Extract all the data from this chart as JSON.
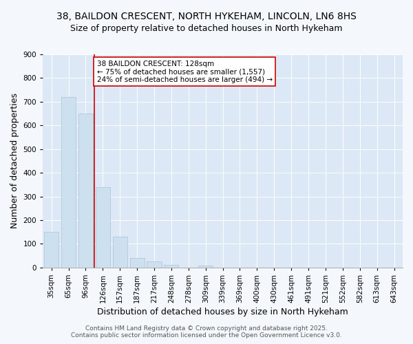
{
  "title_line1": "38, BAILDON CRESCENT, NORTH HYKEHAM, LINCOLN, LN6 8HS",
  "title_line2": "Size of property relative to detached houses in North Hykeham",
  "xlabel": "Distribution of detached houses by size in North Hykeham",
  "ylabel": "Number of detached properties",
  "categories": [
    "35sqm",
    "65sqm",
    "96sqm",
    "126sqm",
    "157sqm",
    "187sqm",
    "217sqm",
    "248sqm",
    "278sqm",
    "309sqm",
    "339sqm",
    "369sqm",
    "400sqm",
    "430sqm",
    "461sqm",
    "491sqm",
    "521sqm",
    "552sqm",
    "582sqm",
    "613sqm",
    "643sqm"
  ],
  "values": [
    150,
    720,
    650,
    340,
    130,
    40,
    25,
    10,
    0,
    8,
    0,
    0,
    0,
    0,
    0,
    0,
    0,
    0,
    0,
    0,
    0
  ],
  "bar_color": "#cde0f0",
  "bar_edge_color": "#a8c4d8",
  "vline_color": "#cc0000",
  "annotation_text": "38 BAILDON CRESCENT: 128sqm\n← 75% of detached houses are smaller (1,557)\n24% of semi-detached houses are larger (494) →",
  "annotation_box_color": "#ffffff",
  "annotation_box_edge": "#cc0000",
  "ylim": [
    0,
    900
  ],
  "yticks": [
    0,
    100,
    200,
    300,
    400,
    500,
    600,
    700,
    800,
    900
  ],
  "background_color": "#dce8f5",
  "fig_background_color": "#f4f8fc",
  "footer_line1": "Contains HM Land Registry data © Crown copyright and database right 2025.",
  "footer_line2": "Contains public sector information licensed under the Open Government Licence v3.0.",
  "title_fontsize": 10,
  "subtitle_fontsize": 9,
  "axis_label_fontsize": 9,
  "tick_fontsize": 7.5,
  "annotation_fontsize": 7.5,
  "footer_fontsize": 6.5
}
